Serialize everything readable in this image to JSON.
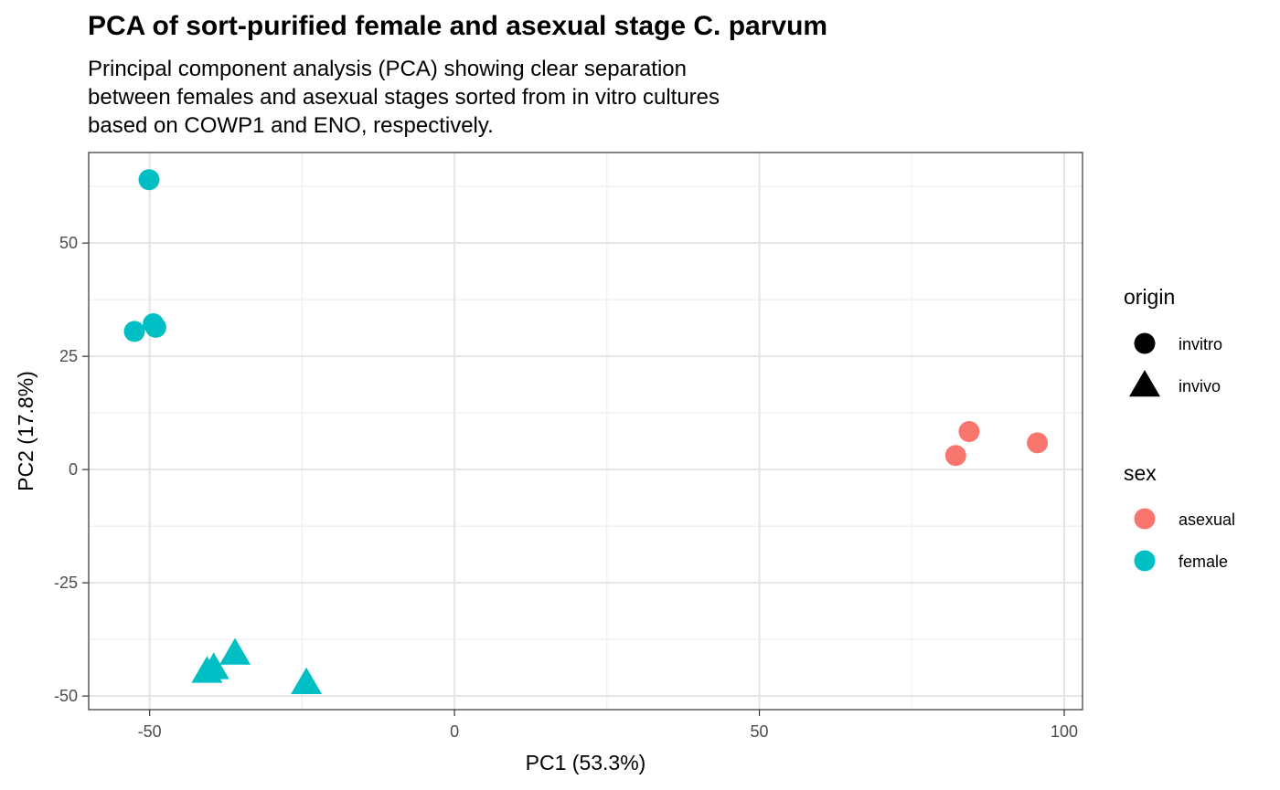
{
  "chart_data": {
    "type": "scatter",
    "title": "PCA of sort-purified female and asexual stage C. parvum",
    "subtitle": "Principal component analysis (PCA) showing clear separation\nbetween females and asexual stages sorted from in vitro cultures\nbased on COWP1 and ENO, respectively.",
    "xlabel": "PC1 (53.3%)",
    "ylabel": "PC2 (17.8%)",
    "xlim": [
      -60,
      103
    ],
    "ylim": [
      -53,
      70
    ],
    "xticks": [
      -50,
      0,
      50,
      100
    ],
    "xtick_labels": [
      "-50",
      "0",
      "50",
      "100"
    ],
    "yticks": [
      -50,
      -25,
      0,
      25,
      50
    ],
    "ytick_labels": [
      "-50",
      "-25",
      "0",
      "25",
      "50"
    ],
    "grid": true,
    "legend_position": "right",
    "legends": [
      {
        "title": "origin",
        "entries": [
          {
            "label": "invitro",
            "shape": "circle",
            "color": "#000000"
          },
          {
            "label": "invivo",
            "shape": "triangle",
            "color": "#000000"
          }
        ]
      },
      {
        "title": "sex",
        "entries": [
          {
            "label": "asexual",
            "shape": "circle",
            "color": "#F8766D"
          },
          {
            "label": "female",
            "shape": "circle",
            "color": "#00BFC4"
          }
        ]
      }
    ],
    "points": [
      {
        "x": -50.1,
        "y": 64.0,
        "sex": "female",
        "origin": "invitro"
      },
      {
        "x": -52.5,
        "y": 30.5,
        "sex": "female",
        "origin": "invitro"
      },
      {
        "x": -49.4,
        "y": 32.2,
        "sex": "female",
        "origin": "invitro"
      },
      {
        "x": -49.0,
        "y": 31.4,
        "sex": "female",
        "origin": "invitro"
      },
      {
        "x": -40.6,
        "y": -44.6,
        "sex": "female",
        "origin": "invivo"
      },
      {
        "x": -39.5,
        "y": -43.8,
        "sex": "female",
        "origin": "invivo"
      },
      {
        "x": -36.0,
        "y": -40.6,
        "sex": "female",
        "origin": "invivo"
      },
      {
        "x": -24.3,
        "y": -47.1,
        "sex": "female",
        "origin": "invivo"
      },
      {
        "x": 84.4,
        "y": 8.4,
        "sex": "asexual",
        "origin": "invitro"
      },
      {
        "x": 82.2,
        "y": 3.1,
        "sex": "asexual",
        "origin": "invitro"
      },
      {
        "x": 95.6,
        "y": 5.9,
        "sex": "asexual",
        "origin": "invitro"
      }
    ],
    "colors": {
      "asexual": "#F8766D",
      "female": "#00BFC4"
    }
  }
}
